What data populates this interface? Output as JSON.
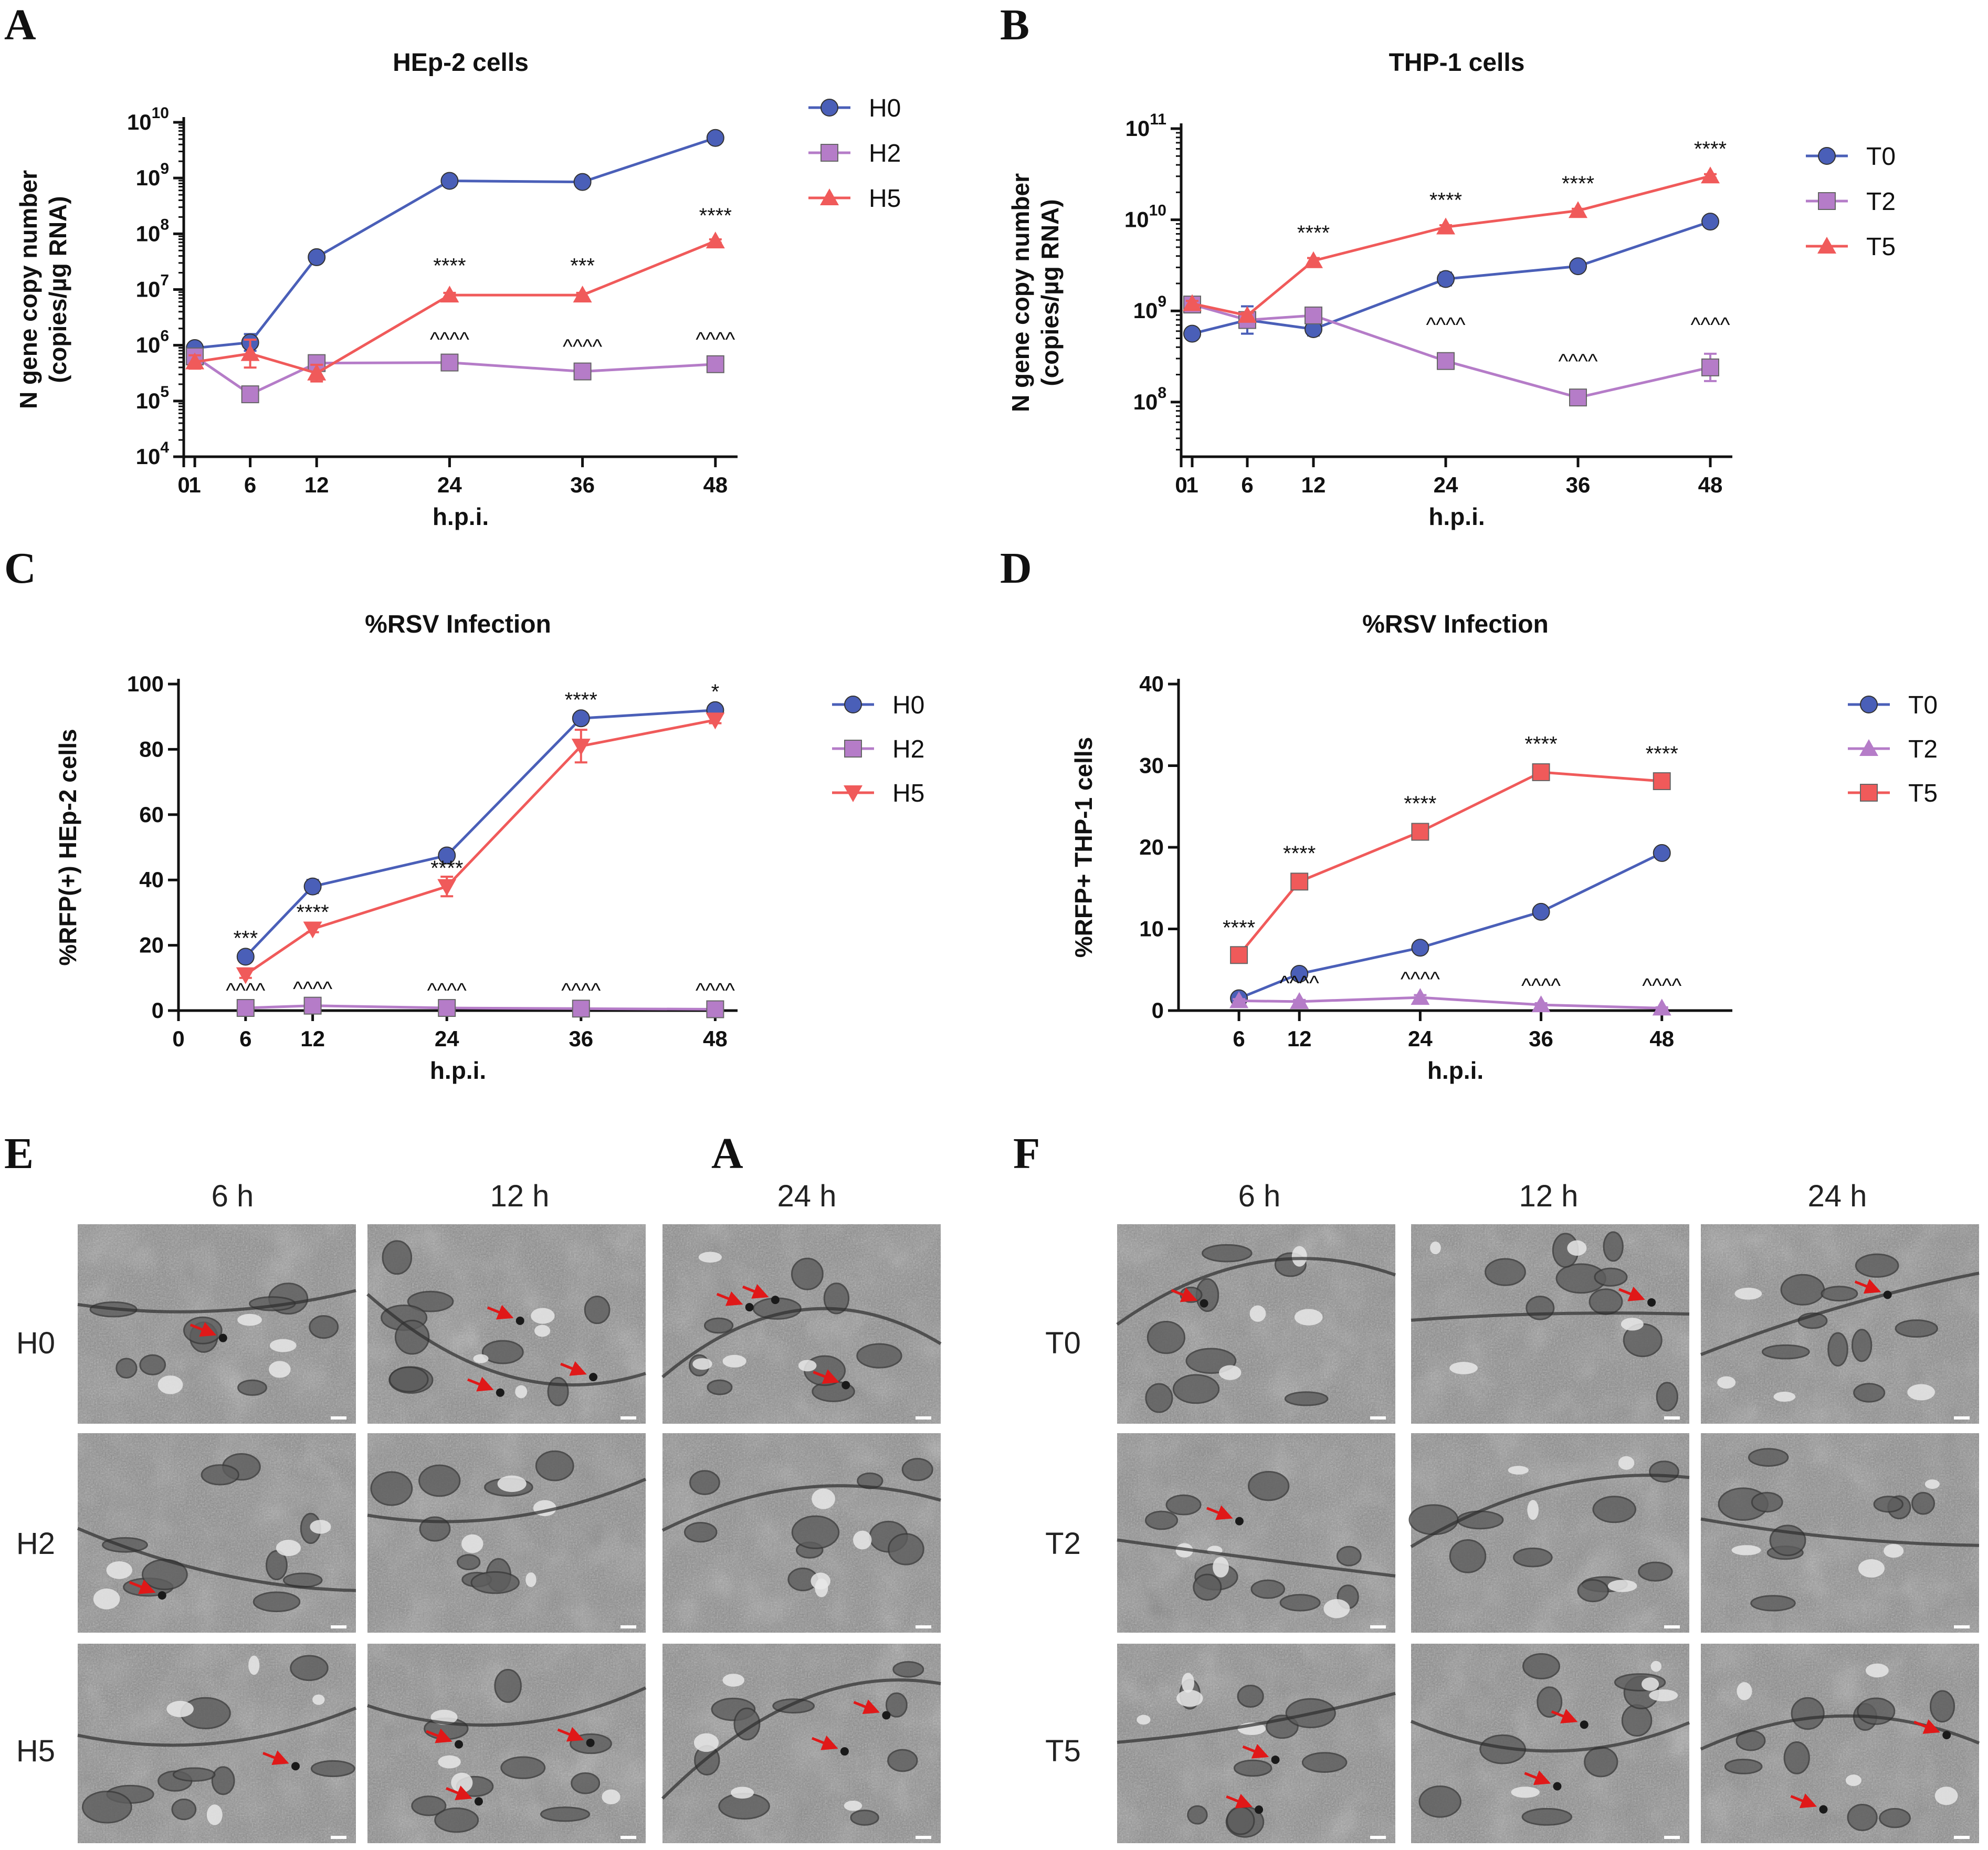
{
  "colors": {
    "blue": "#4a5fb8",
    "purple": "#b57cc8",
    "red": "#f05a5a",
    "arrow": "#e01818"
  },
  "panel_labels": [
    "A",
    "B",
    "C",
    "D",
    "E",
    "A",
    "F"
  ],
  "chart_data": [
    {
      "id": "A",
      "type": "line",
      "title": "HEp-2 cells",
      "xlabel": "h.p.i.",
      "ylabel_lines": [
        "N gene copy number",
        "(copies/µg RNA)"
      ],
      "yscale": "log",
      "ylim": [
        4,
        10
      ],
      "xlim": [
        0,
        50
      ],
      "xticks": [
        0,
        1,
        6,
        12,
        24,
        36,
        48
      ],
      "xtick_labels": [
        "0",
        "1",
        "6",
        "12",
        "24",
        "36",
        "48"
      ],
      "yticks": [
        4,
        5,
        6,
        7,
        8,
        9,
        10
      ],
      "ytick_labels": [
        [
          "10",
          "4"
        ],
        [
          "10",
          "5"
        ],
        [
          "10",
          "6"
        ],
        [
          "10",
          "7"
        ],
        [
          "10",
          "8"
        ],
        [
          "10",
          "9"
        ],
        [
          "10",
          "10"
        ]
      ],
      "series": [
        {
          "name": "H0",
          "color": "blue",
          "marker": "circle",
          "x": [
            1,
            6,
            12,
            24,
            36,
            48
          ],
          "y": [
            5.95,
            6.05,
            7.58,
            8.95,
            8.93,
            9.72
          ],
          "err": [
            0.05,
            0.15,
            0.03,
            0.05,
            0.08,
            0.03
          ]
        },
        {
          "name": "H2",
          "color": "purple",
          "marker": "square",
          "x": [
            1,
            6,
            12,
            24,
            36,
            48
          ],
          "y": [
            5.8,
            5.12,
            5.68,
            5.69,
            5.53,
            5.66
          ],
          "err": [
            0.05,
            0.04,
            0.05,
            0.04,
            0.04,
            0.12
          ]
        },
        {
          "name": "H5",
          "color": "red",
          "marker": "triangle",
          "x": [
            1,
            6,
            12,
            24,
            36,
            48
          ],
          "y": [
            5.7,
            5.85,
            5.5,
            6.9,
            6.9,
            7.87
          ],
          "err": [
            0.12,
            0.25,
            0.15,
            0.04,
            0.04,
            0.03
          ]
        }
      ],
      "annotations": [
        {
          "text": "****",
          "x": 24,
          "y": 7.3
        },
        {
          "text": "***",
          "x": 36,
          "y": 7.3
        },
        {
          "text": "****",
          "x": 48,
          "y": 8.2
        },
        {
          "text": "^^^^",
          "x": 24,
          "y": 5.98
        },
        {
          "text": "^^^^",
          "x": 36,
          "y": 5.85
        },
        {
          "text": "^^^^",
          "x": 48,
          "y": 5.98
        }
      ]
    },
    {
      "id": "B",
      "type": "line",
      "title": "THP-1 cells",
      "xlabel": "h.p.i.",
      "ylabel_lines": [
        "N gene copy number",
        "(copies/µg RNA)"
      ],
      "yscale": "log",
      "ylim": [
        7.4,
        11
      ],
      "xlim": [
        0,
        50
      ],
      "xticks": [
        0,
        1,
        6,
        12,
        24,
        36,
        48
      ],
      "xtick_labels": [
        "0",
        "1",
        "6",
        "12",
        "24",
        "36",
        "48"
      ],
      "yticks": [
        8,
        9,
        10,
        11
      ],
      "ytick_labels": [
        [
          "10",
          "8"
        ],
        [
          "10",
          "9"
        ],
        [
          "10",
          "10"
        ],
        [
          "10",
          "11"
        ]
      ],
      "series": [
        {
          "name": "T0",
          "color": "blue",
          "marker": "circle",
          "x": [
            1,
            6,
            12,
            24,
            36,
            48
          ],
          "y": [
            8.75,
            8.9,
            8.8,
            9.35,
            9.49,
            9.98
          ],
          "err": [
            0.04,
            0.15,
            0.07,
            0.07,
            0.03,
            0.03
          ]
        },
        {
          "name": "T2",
          "color": "purple",
          "marker": "square",
          "x": [
            1,
            6,
            12,
            24,
            36,
            48
          ],
          "y": [
            9.07,
            8.9,
            8.95,
            8.45,
            8.05,
            8.38
          ],
          "err": [
            0.03,
            0.06,
            0.08,
            0.03,
            0.03,
            0.15
          ]
        },
        {
          "name": "T5",
          "color": "red",
          "marker": "triangle",
          "x": [
            1,
            6,
            12,
            24,
            36,
            48
          ],
          "y": [
            9.08,
            8.95,
            9.55,
            9.92,
            10.1,
            10.48
          ],
          "err": [
            0.03,
            0.03,
            0.03,
            0.02,
            0.02,
            0.02
          ]
        }
      ],
      "annotations": [
        {
          "text": "****",
          "x": 12,
          "y": 9.78
        },
        {
          "text": "****",
          "x": 24,
          "y": 10.14
        },
        {
          "text": "****",
          "x": 36,
          "y": 10.32
        },
        {
          "text": "****",
          "x": 48,
          "y": 10.7
        },
        {
          "text": "^^^^",
          "x": 24,
          "y": 8.77
        },
        {
          "text": "^^^^",
          "x": 36,
          "y": 8.37
        },
        {
          "text": "^^^^",
          "x": 48,
          "y": 8.77
        }
      ]
    },
    {
      "id": "C",
      "type": "line",
      "title": "%RSV Infection",
      "xlabel": "h.p.i.",
      "ylabel_lines": [
        "%RFP(+) HEp-2 cells"
      ],
      "yscale": "linear",
      "ylim": [
        0,
        100
      ],
      "xlim": [
        0,
        50
      ],
      "xticks": [
        0,
        6,
        12,
        24,
        36,
        48
      ],
      "xtick_labels": [
        "0",
        "6",
        "12",
        "24",
        "36",
        "48"
      ],
      "yticks": [
        0,
        20,
        40,
        60,
        80,
        100
      ],
      "ytick_labels": [
        [
          "0"
        ],
        [
          "20"
        ],
        [
          "40"
        ],
        [
          "60"
        ],
        [
          "80"
        ],
        [
          "100"
        ]
      ],
      "series": [
        {
          "name": "H0",
          "color": "blue",
          "marker": "circle",
          "x": [
            6,
            12,
            24,
            36,
            48
          ],
          "y": [
            16.5,
            38,
            47.5,
            89.5,
            92
          ],
          "err": [
            1.5,
            2,
            1,
            1,
            1
          ]
        },
        {
          "name": "H2",
          "color": "purple",
          "marker": "square",
          "x": [
            6,
            12,
            24,
            36,
            48
          ],
          "y": [
            0.8,
            1.5,
            0.8,
            0.6,
            0.4
          ],
          "err": [
            0.3,
            0.3,
            0.3,
            0.3,
            0.3
          ]
        },
        {
          "name": "H5",
          "color": "red",
          "marker": "triangle-down",
          "x": [
            6,
            12,
            24,
            36,
            48
          ],
          "y": [
            11,
            25,
            38,
            81,
            89
          ],
          "err": [
            1,
            1,
            3,
            5,
            1
          ]
        }
      ],
      "annotations": [
        {
          "text": "***",
          "x": 6,
          "y": 20
        },
        {
          "text": "****",
          "x": 12,
          "y": 28
        },
        {
          "text": "****",
          "x": 24,
          "y": 41.5
        },
        {
          "text": "****",
          "x": 36,
          "y": 93
        },
        {
          "text": "*",
          "x": 48,
          "y": 95.5
        },
        {
          "text": "^^^^",
          "x": 6,
          "y": 4
        },
        {
          "text": "^^^^",
          "x": 12,
          "y": 4.5
        },
        {
          "text": "^^^^",
          "x": 24,
          "y": 4
        },
        {
          "text": "^^^^",
          "x": 36,
          "y": 4
        },
        {
          "text": "^^^^",
          "x": 48,
          "y": 4
        }
      ]
    },
    {
      "id": "D",
      "type": "line",
      "title": "%RSV Infection",
      "xlabel": "h.p.i.",
      "ylabel_lines": [
        "%RFP+ THP-1 cells"
      ],
      "yscale": "linear",
      "ylim": [
        0,
        40
      ],
      "xlim": [
        0,
        55
      ],
      "xticks": [
        6,
        12,
        24,
        36,
        48
      ],
      "xtick_labels": [
        "6",
        "12",
        "24",
        "36",
        "48"
      ],
      "yticks": [
        0,
        10,
        20,
        30,
        40
      ],
      "ytick_labels": [
        [
          "0"
        ],
        [
          "10"
        ],
        [
          "20"
        ],
        [
          "30"
        ],
        [
          "40"
        ]
      ],
      "series": [
        {
          "name": "T0",
          "color": "blue",
          "marker": "circle",
          "x": [
            6,
            12,
            24,
            36,
            48
          ],
          "y": [
            1.5,
            4.5,
            7.7,
            12.1,
            19.3
          ],
          "err": [
            0.3,
            0.3,
            0.3,
            0.3,
            0.4
          ]
        },
        {
          "name": "T2",
          "color": "purple",
          "marker": "triangle",
          "x": [
            6,
            12,
            24,
            36,
            48
          ],
          "y": [
            1.2,
            1.1,
            1.6,
            0.7,
            0.3
          ],
          "err": [
            0.2,
            0.2,
            0.3,
            0.2,
            0.1
          ]
        },
        {
          "name": "T5",
          "color": "red",
          "marker": "square",
          "x": [
            6,
            12,
            24,
            36,
            48
          ],
          "y": [
            6.8,
            15.8,
            21.9,
            29.2,
            28.1
          ],
          "err": [
            0.5,
            0.5,
            0.5,
            0.5,
            0.5
          ]
        }
      ],
      "annotations": [
        {
          "text": "****",
          "x": 6,
          "y": 9.3
        },
        {
          "text": "****",
          "x": 12,
          "y": 18.4
        },
        {
          "text": "****",
          "x": 24,
          "y": 24.5
        },
        {
          "text": "****",
          "x": 36,
          "y": 31.8
        },
        {
          "text": "****",
          "x": 48,
          "y": 30.6
        },
        {
          "text": "^^^^",
          "x": 12,
          "y": 2.5
        },
        {
          "text": "^^^^",
          "x": 24,
          "y": 3
        },
        {
          "text": "^^^^",
          "x": 36,
          "y": 2.2
        },
        {
          "text": "^^^^",
          "x": 48,
          "y": 2.2
        }
      ]
    }
  ],
  "micrographs": {
    "E": {
      "columns": [
        "6 h",
        "12 h",
        "24 h"
      ],
      "rows": [
        "H0",
        "H2",
        "H5"
      ]
    },
    "F": {
      "columns": [
        "6 h",
        "12 h",
        "24 h"
      ],
      "rows": [
        "T0",
        "T2",
        "T5"
      ]
    }
  }
}
